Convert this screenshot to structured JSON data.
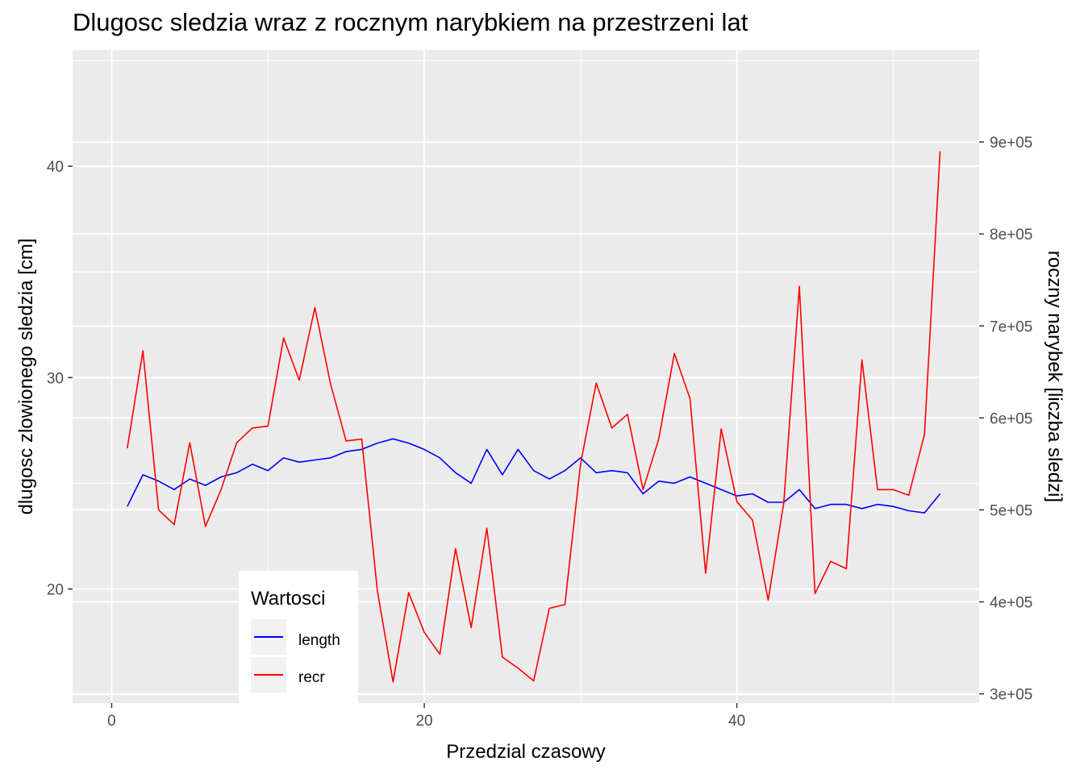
{
  "chart_data": {
    "type": "line",
    "title": "Dlugosc sledzia wraz z rocznym narybkiem na przestrzeni lat",
    "xlabel": "Przedzial czasowy",
    "ylabel": "dlugosc zlowionego sledzia [cm]",
    "y2label": "roczny narybek [liczba sledzi]",
    "xlim": [
      -2.5,
      55.5
    ],
    "ylim": [
      14.6,
      45.5
    ],
    "y2lim": [
      290000,
      1000000
    ],
    "x_ticks": [
      0,
      20,
      40
    ],
    "y_ticks": [
      20,
      30,
      40
    ],
    "y2_ticks": [
      300000,
      400000,
      500000,
      600000,
      700000,
      800000,
      900000
    ],
    "y2_tick_labels": [
      "3e+05",
      "4e+05",
      "5e+05",
      "6e+05",
      "7e+05",
      "8e+05",
      "9e+05"
    ],
    "grid": true,
    "legend": {
      "title": "Wartosci",
      "position": "bottom-left",
      "entries": [
        {
          "label": "length",
          "color": "#0000ff"
        },
        {
          "label": "recr",
          "color": "#ff0000"
        }
      ]
    },
    "series": [
      {
        "name": "length",
        "axis": "left",
        "color": "#0000ff",
        "x": [
          1,
          2,
          3,
          4,
          5,
          6,
          7,
          8,
          9,
          10,
          11,
          12,
          13,
          14,
          15,
          16,
          17,
          18,
          19,
          20,
          21,
          22,
          23,
          24,
          25,
          26,
          27,
          28,
          29,
          30,
          31,
          32,
          33,
          34,
          35,
          36,
          37,
          38,
          39,
          40,
          41,
          42,
          43,
          44,
          45,
          46,
          47,
          48,
          49,
          50,
          51,
          52,
          53
        ],
        "values": [
          23.9,
          25.4,
          25.1,
          24.7,
          25.2,
          24.9,
          25.3,
          25.5,
          25.9,
          25.6,
          26.2,
          26.0,
          26.1,
          26.2,
          26.5,
          26.6,
          26.9,
          27.1,
          26.9,
          26.6,
          26.2,
          25.5,
          25.0,
          26.6,
          25.4,
          26.6,
          25.6,
          25.2,
          25.6,
          26.2,
          25.5,
          25.6,
          25.5,
          24.5,
          25.1,
          25.0,
          25.3,
          25.0,
          24.7,
          24.4,
          24.5,
          24.1,
          24.1,
          24.7,
          23.8,
          24.0,
          24.0,
          23.8,
          24.0,
          23.9,
          23.7,
          23.6,
          24.5
        ]
      },
      {
        "name": "recr",
        "axis": "right",
        "color": "#ff0000",
        "x": [
          1,
          2,
          3,
          4,
          5,
          6,
          7,
          8,
          9,
          10,
          11,
          12,
          13,
          14,
          15,
          16,
          17,
          18,
          19,
          20,
          21,
          22,
          23,
          24,
          25,
          26,
          27,
          28,
          29,
          30,
          31,
          32,
          33,
          34,
          35,
          36,
          37,
          38,
          39,
          40,
          41,
          42,
          43,
          44,
          45,
          46,
          47,
          48,
          49,
          50,
          51,
          52,
          53
        ],
        "values": [
          567000,
          673000,
          500000,
          484000,
          573000,
          482000,
          522000,
          573000,
          589000,
          591000,
          687000,
          641000,
          720000,
          637000,
          575000,
          577000,
          412000,
          313000,
          410000,
          367000,
          343000,
          458000,
          372000,
          480000,
          340000,
          328000,
          314000,
          393000,
          397000,
          550000,
          638000,
          589000,
          604000,
          522000,
          577000,
          670000,
          621000,
          431000,
          588000,
          509000,
          489000,
          402000,
          508000,
          743000,
          409000,
          444000,
          436000,
          663000,
          522000,
          522000,
          516000,
          582000,
          890000
        ]
      }
    ]
  }
}
